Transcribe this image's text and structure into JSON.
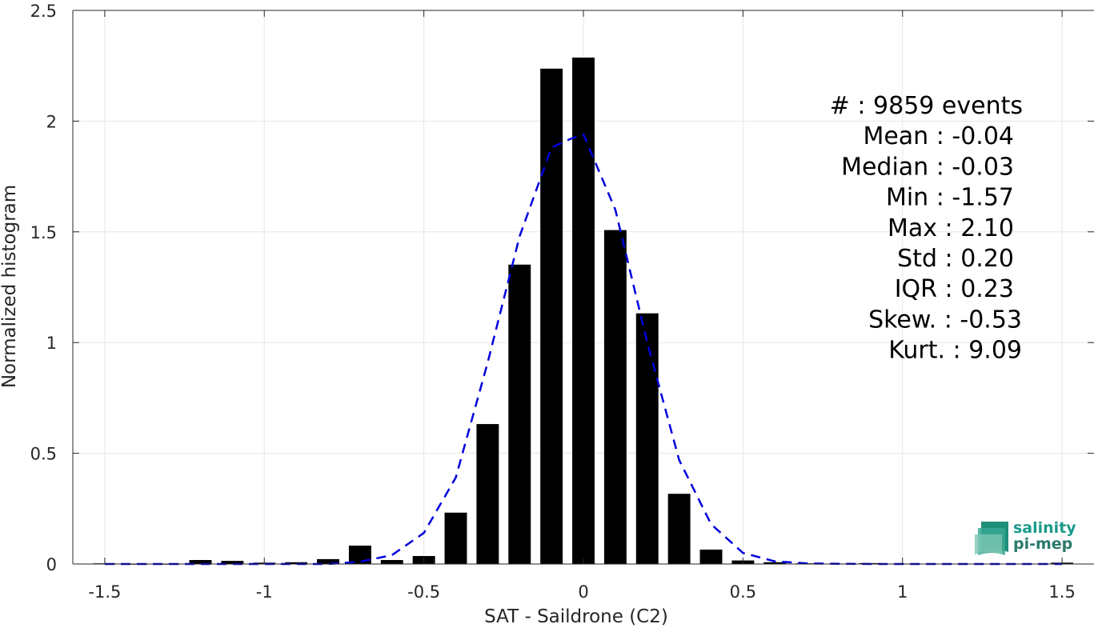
{
  "chart_data": {
    "type": "bar",
    "xlabel": "SAT - Saildrone (C2)",
    "ylabel": "Normalized histogram",
    "xlim": [
      -1.6,
      1.6
    ],
    "ylim": [
      0,
      2.5
    ],
    "x_ticks": [
      -1.5,
      -1,
      -0.5,
      0,
      0.5,
      1,
      1.5
    ],
    "x_tick_labels": [
      "-1.5",
      "-1",
      "-0.5",
      "0",
      "0.5",
      "1",
      "1.5"
    ],
    "y_ticks": [
      0,
      0.5,
      1,
      1.5,
      2,
      2.5
    ],
    "y_tick_labels": [
      "0",
      "0.5",
      "1",
      "1.5",
      "2",
      "2.5"
    ],
    "grid": true,
    "bar_width": 0.07,
    "bar_color": "#000000",
    "bars": {
      "x": [
        -1.5,
        -1.4,
        -1.3,
        -1.2,
        -1.1,
        -1.0,
        -0.9,
        -0.8,
        -0.7,
        -0.6,
        -0.5,
        -0.4,
        -0.3,
        -0.2,
        -0.1,
        0.0,
        0.1,
        0.2,
        0.3,
        0.4,
        0.5,
        0.6,
        0.7,
        0.8,
        0.9,
        1.0,
        1.1,
        1.2,
        1.3,
        1.4,
        1.5
      ],
      "values": [
        0.003,
        0.0,
        0.0,
        0.018,
        0.014,
        0.006,
        0.008,
        0.022,
        0.083,
        0.018,
        0.036,
        0.232,
        0.632,
        1.352,
        2.237,
        2.287,
        1.508,
        1.132,
        0.317,
        0.065,
        0.016,
        0.008,
        0.003,
        0.002,
        0.004,
        0.002,
        0.001,
        0.001,
        0.001,
        0.001,
        0.006
      ]
    },
    "fit": {
      "style": "dashed",
      "color": "#0000dd",
      "x": [
        -1.5,
        -1.4,
        -1.3,
        -1.2,
        -1.1,
        -1.0,
        -0.9,
        -0.8,
        -0.7,
        -0.6,
        -0.5,
        -0.4,
        -0.3,
        -0.2,
        -0.1,
        -0.04,
        0.0,
        0.1,
        0.2,
        0.3,
        0.4,
        0.5,
        0.6,
        0.7,
        0.8,
        0.9,
        1.0,
        1.1,
        1.2,
        1.3,
        1.4,
        1.5
      ],
      "y": [
        0.0,
        0.0,
        0.0,
        0.0,
        0.0,
        0.0,
        0.0,
        0.0,
        0.01,
        0.04,
        0.14,
        0.39,
        0.91,
        1.48,
        1.88,
        1.92,
        1.94,
        1.6,
        1.0,
        0.47,
        0.18,
        0.05,
        0.012,
        0.003,
        0.001,
        0.0,
        0.0,
        0.0,
        0.0,
        0.0,
        0.0,
        0.0
      ]
    },
    "annotations": [
      "#  : 9859 events",
      "Mean : -0.04",
      "Median : -0.03",
      "Min : -1.57",
      "Max : 2.10",
      "Std : 0.20",
      "IQR : 0.23",
      "Skew. : -0.53",
      "Kurt. : 9.09"
    ]
  },
  "logo": {
    "line1": "salinity",
    "line2": "pi-mep",
    "color_primary": "#1a9a8a",
    "color_secondary": "#2a7a6a"
  }
}
